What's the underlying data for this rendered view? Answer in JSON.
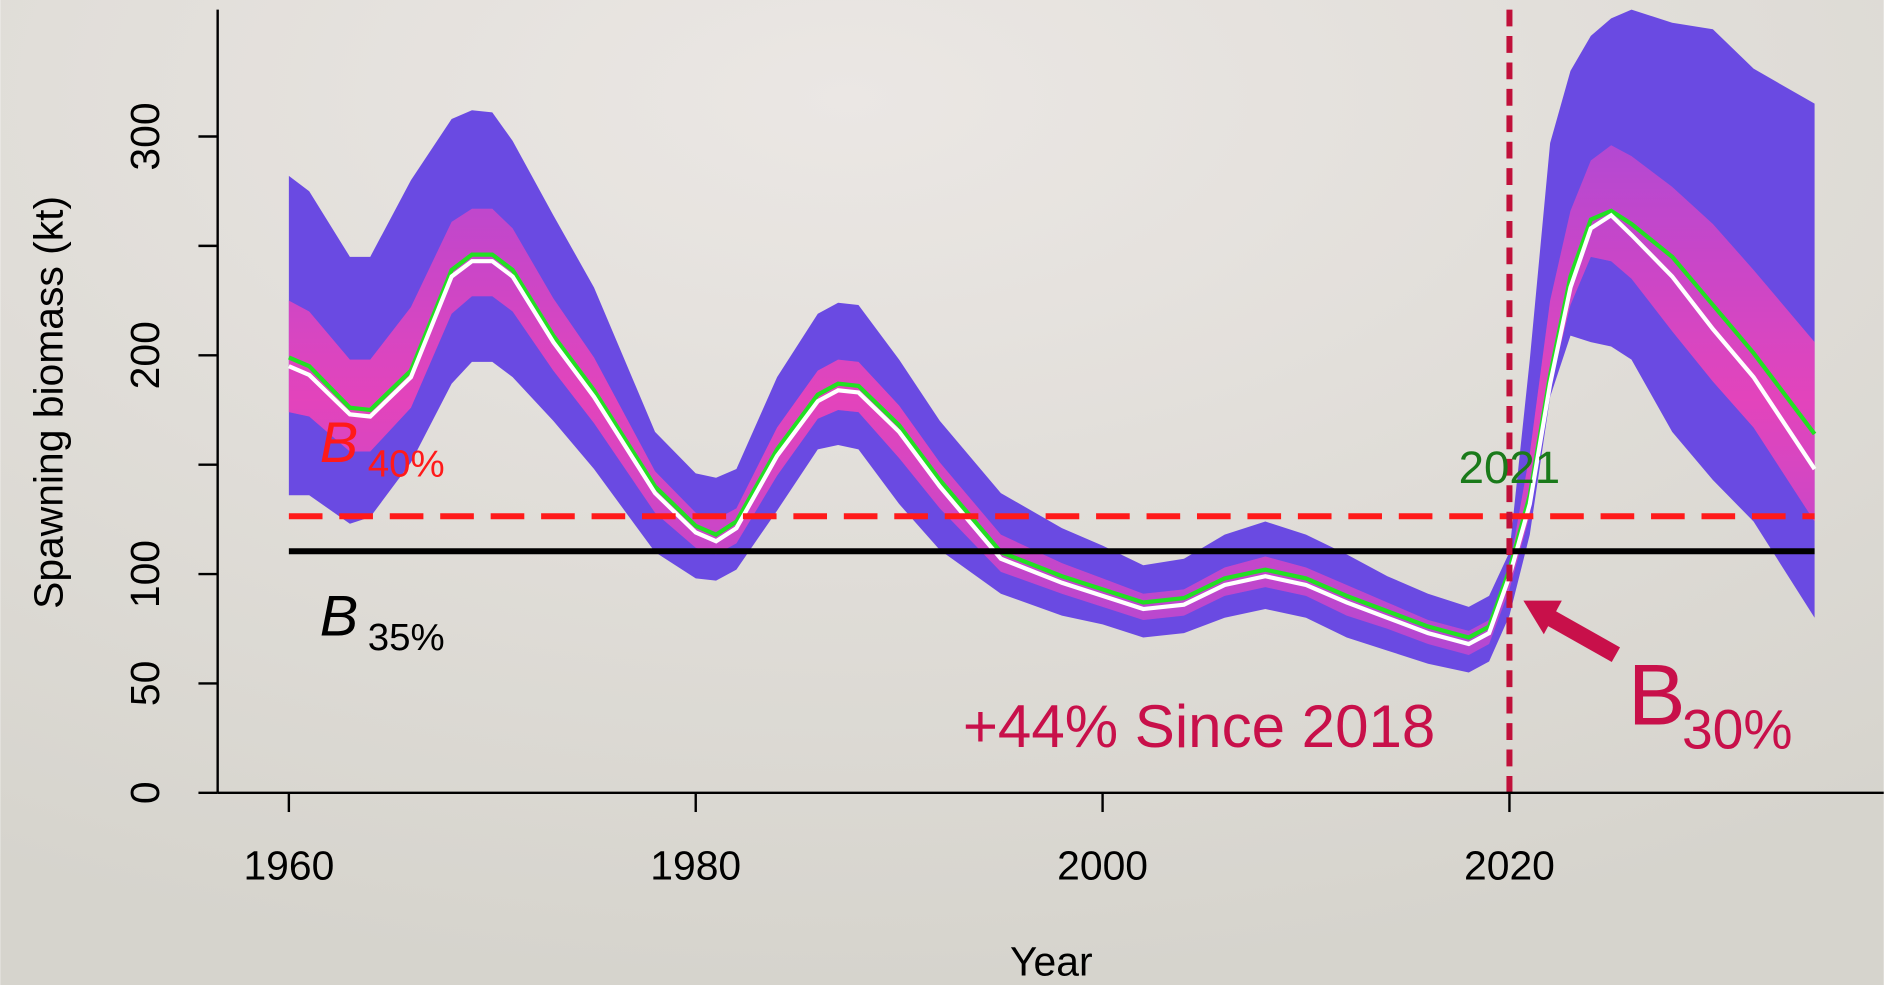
{
  "chart_data": {
    "type": "fan",
    "x_label": "Year",
    "y_label": "Spawning biomass (kt)",
    "xlim": [
      1956.5,
      2038.4
    ],
    "ylim": [
      0,
      358
    ],
    "xticks": [
      1960,
      1980,
      2000,
      2020
    ],
    "yticks": [
      0,
      50,
      100,
      200,
      300
    ],
    "yminor_ticks": [
      150,
      250
    ],
    "x": [
      1960,
      1961,
      1963,
      1964,
      1966,
      1968,
      1969,
      1970,
      1971,
      1973,
      1975,
      1978,
      1980,
      1981,
      1982,
      1984,
      1986,
      1987,
      1988,
      1990,
      1992,
      1995,
      1998,
      2000,
      2002,
      2004,
      2006,
      2008,
      2010,
      2012,
      2014,
      2016,
      2018,
      2019,
      2020,
      2021,
      2022,
      2023,
      2024,
      2025,
      2026,
      2028,
      2030,
      2032,
      2035
    ],
    "bands": [
      {
        "color": "#6a4ae2",
        "upper": [
          282,
          275,
          245,
          245,
          280,
          308,
          312,
          311,
          298,
          264,
          231,
          165,
          146,
          144,
          148,
          190,
          219,
          224,
          223,
          198,
          170,
          137,
          121,
          113,
          104,
          107,
          118,
          124,
          118,
          109,
          99,
          91,
          85,
          90,
          110,
          198,
          297,
          330,
          346,
          354,
          358,
          352,
          349,
          331,
          315
        ],
        "lower": [
          136,
          136,
          123,
          126,
          151,
          187,
          197,
          197,
          190,
          170,
          148,
          110,
          98,
          97,
          102,
          129,
          157,
          159,
          157,
          132,
          111,
          91,
          81,
          77,
          71,
          73,
          80,
          84,
          80,
          71,
          65,
          59,
          55,
          60,
          81,
          118,
          181,
          209,
          206,
          204,
          198,
          165,
          143,
          124,
          80
        ]
      },
      {
        "color": "#f040b8",
        "upper": [
          225,
          220,
          198,
          198,
          222,
          261,
          267,
          267,
          258,
          226,
          199,
          147,
          128,
          125,
          130,
          167,
          193,
          198,
          197,
          177,
          151,
          118,
          105,
          98,
          91,
          93,
          103,
          108,
          103,
          95,
          87,
          79,
          74,
          79,
          103,
          155,
          225,
          266,
          289,
          296,
          291,
          277,
          260,
          239,
          206
        ],
        "lower": [
          174,
          172,
          156,
          156,
          176,
          219,
          227,
          227,
          220,
          193,
          169,
          128,
          112,
          109,
          114,
          145,
          171,
          175,
          174,
          153,
          130,
          101,
          91,
          85,
          79,
          81,
          90,
          94,
          90,
          81,
          75,
          68,
          63,
          68,
          93,
          127,
          185,
          223,
          245,
          243,
          235,
          211,
          188,
          167,
          124
        ]
      }
    ],
    "lines": [
      {
        "color": "#22e022",
        "values": [
          199,
          195,
          176,
          175,
          193,
          239,
          246,
          246,
          239,
          209,
          184,
          140,
          122,
          118,
          124,
          157,
          182,
          187,
          186,
          168,
          143,
          110,
          99,
          93,
          87,
          89,
          98,
          102,
          98,
          90,
          83,
          76,
          71,
          76,
          102,
          136,
          191,
          236,
          262,
          266,
          260,
          245,
          223,
          201,
          164
        ]
      },
      {
        "color": "#ffffff",
        "values": [
          195,
          191,
          173,
          172,
          190,
          236,
          243,
          243,
          236,
          206,
          181,
          137,
          119,
          115,
          121,
          154,
          179,
          184,
          183,
          165,
          140,
          107,
          96,
          90,
          84,
          86,
          95,
          99,
          95,
          87,
          80,
          73,
          68,
          73,
          99,
          132,
          187,
          231,
          258,
          264,
          255,
          236,
          212,
          190,
          148
        ]
      }
    ],
    "reference_lines": [
      {
        "value": 126.4,
        "color": "#ff1a1a",
        "dashed": true,
        "xrange": [
          1960,
          2035
        ],
        "label": "B",
        "sub": "40%"
      },
      {
        "value": 110.4,
        "color": "#000000",
        "dashed": false,
        "xrange": [
          1960,
          2035
        ],
        "label": "B",
        "sub": "35%"
      }
    ],
    "vline": {
      "value": 2020,
      "color": "#c0103a",
      "label": "2021",
      "label_color": "#1a7a1a"
    },
    "annotations": [
      {
        "text": "+44% Since 2018",
        "color": "#c8104a"
      },
      {
        "text": "B",
        "sub": "30%",
        "color": "#c8104a"
      }
    ]
  }
}
